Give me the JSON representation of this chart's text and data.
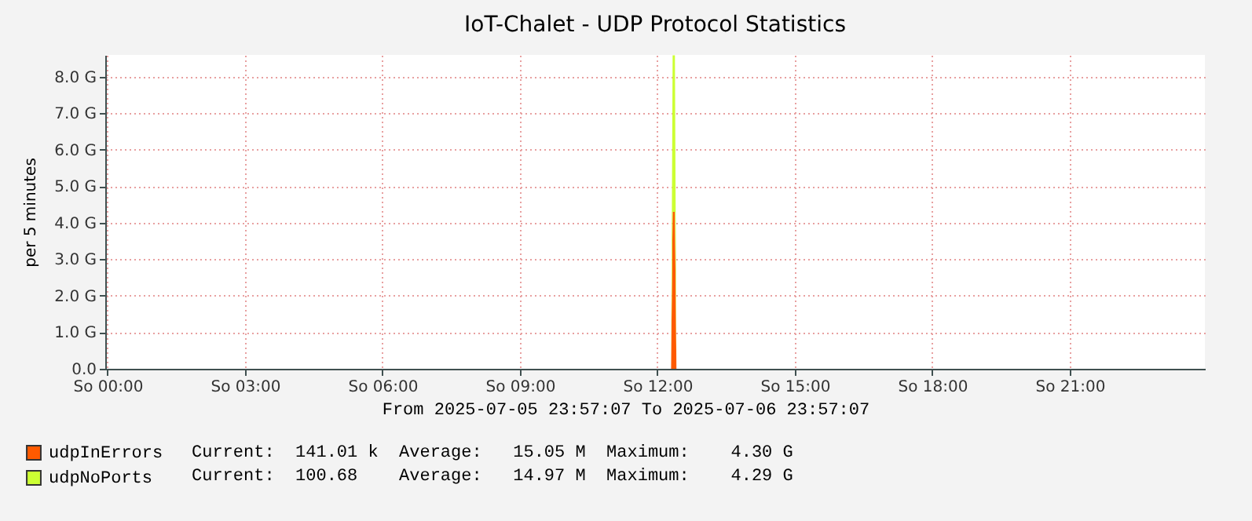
{
  "chart_data": {
    "type": "area",
    "title": "IoT-Chalet - UDP Protocol Statistics",
    "ylabel": "per 5 minutes",
    "stacked": true,
    "x": [
      "2025-07-05T23:57",
      "2025-07-06T12:18",
      "2025-07-06T12:20",
      "2025-07-06T12:23",
      "2025-07-06T12:25",
      "2025-07-06T23:57"
    ],
    "series": [
      {
        "name": "udpInErrors",
        "color": "#ff5a00",
        "values": [
          0,
          0,
          4.3,
          4.3,
          0,
          0
        ]
      },
      {
        "name": "udpNoPorts",
        "color": "#ccff33",
        "values": [
          0,
          0,
          4.29,
          4.29,
          0,
          0
        ]
      }
    ],
    "xlim": [
      "2025-07-05T23:57",
      "2025-07-06T23:57"
    ],
    "xticks": [
      {
        "value": "2025-07-06T00:00",
        "label": "So 00:00"
      },
      {
        "value": "2025-07-06T03:00",
        "label": "So 03:00"
      },
      {
        "value": "2025-07-06T06:00",
        "label": "So 06:00"
      },
      {
        "value": "2025-07-06T09:00",
        "label": "So 09:00"
      },
      {
        "value": "2025-07-06T12:00",
        "label": "So 12:00"
      },
      {
        "value": "2025-07-06T15:00",
        "label": "So 15:00"
      },
      {
        "value": "2025-07-06T18:00",
        "label": "So 18:00"
      },
      {
        "value": "2025-07-06T21:00",
        "label": "So 21:00"
      }
    ],
    "ylim": [
      0,
      8.6
    ],
    "yticks": [
      {
        "value": 0,
        "label": "0.0"
      },
      {
        "value": 1,
        "label": "1.0 G"
      },
      {
        "value": 2,
        "label": "2.0 G"
      },
      {
        "value": 3,
        "label": "3.0 G"
      },
      {
        "value": 4,
        "label": "4.0 G"
      },
      {
        "value": 5,
        "label": "5.0 G"
      },
      {
        "value": 6,
        "label": "6.0 G"
      },
      {
        "value": 7,
        "label": "7.0 G"
      },
      {
        "value": 8,
        "label": "8.0 G"
      }
    ],
    "grid": true,
    "legend": "bottom left",
    "annotations": [
      "From 2025-07-05 23:57:07 To 2025-07-06 23:57:07",
      "Current:  141.01 k  Average:   15.05 M  Maximum:    4.30 G",
      "Current:  100.68    Average:   14.97 M  Maximum:    4.29 G"
    ]
  }
}
